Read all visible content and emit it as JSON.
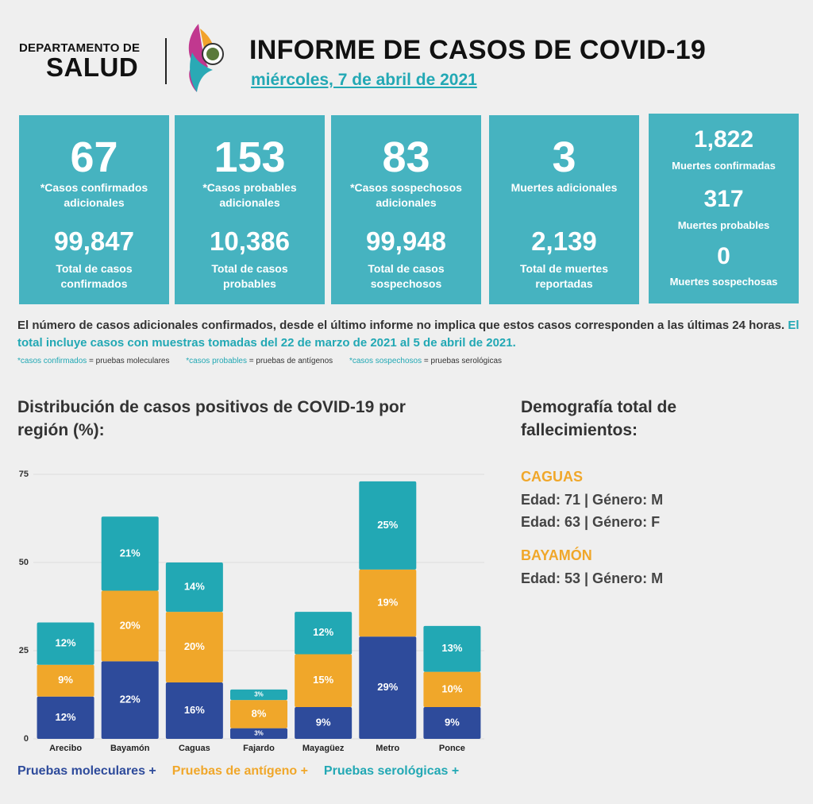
{
  "header": {
    "org_line1": "DEPARTAMENTO DE",
    "org_line2": "SALUD",
    "title": "INFORME DE CASOS DE COVID-19",
    "date": "miércoles, 7 de abril de 2021"
  },
  "cards": [
    {
      "number": "67",
      "label": "*Casos confirmados adicionales",
      "total": "99,847",
      "total_label": "Total de casos confirmados"
    },
    {
      "number": "153",
      "label": "*Casos probables adicionales",
      "total": "10,386",
      "total_label": "Total de casos probables"
    },
    {
      "number": "83",
      "label": "*Casos sospechosos adicionales",
      "total": "99,948",
      "total_label": "Total de casos sospechosos"
    },
    {
      "number": "3",
      "label": "Muertes adicionales",
      "total": "2,139",
      "total_label": "Total de muertes reportadas"
    }
  ],
  "deaths_card": [
    {
      "number": "1,822",
      "label": "Muertes confirmadas"
    },
    {
      "number": "317",
      "label": "Muertes probables"
    },
    {
      "number": "0",
      "label": "Muertes sospechosas"
    }
  ],
  "notes": {
    "text": "El número de casos adicionales confirmados, desde el último informe no implica que estos casos corresponden a las últimas 24 horas.",
    "highlight": "El total incluye casos con muestras tomadas del 22 de marzo de 2021 al 5 de abril de 2021.",
    "footnotes": [
      {
        "term": "*casos confirmados",
        "definition": "= pruebas moleculares"
      },
      {
        "term": "*casos probables",
        "definition": "= pruebas de antígenos"
      },
      {
        "term": "*casos sospechosos",
        "definition": "= pruebas serológicas"
      }
    ]
  },
  "chart_data": {
    "type": "stacked_bar",
    "title": "Distribución de casos positivos de COVID-19 por región (%):",
    "categories": [
      "Arecibo",
      "Bayamón",
      "Caguas",
      "Fajardo",
      "Mayagüez",
      "Metro",
      "Ponce"
    ],
    "series": [
      {
        "name": "Pruebas moleculares +",
        "color": "#2e4b9b",
        "values": [
          12,
          22,
          16,
          3,
          9,
          29,
          9
        ],
        "value_labels": [
          "12%",
          "22%",
          "16%",
          "3%",
          "9%",
          "29%",
          "9%"
        ]
      },
      {
        "name": "Pruebas de antígeno +",
        "color": "#f0a72a",
        "values": [
          9,
          20,
          20,
          8,
          15,
          19,
          10
        ],
        "value_labels": [
          "9%",
          "20%",
          "20%",
          "8%",
          "15%",
          "19%",
          "10%"
        ]
      },
      {
        "name": "Pruebas serológicas +",
        "color": "#22a8b4",
        "values": [
          12,
          21,
          14,
          3,
          12,
          25,
          13
        ],
        "value_labels": [
          "12%",
          "21%",
          "14%",
          "3%",
          "12%",
          "25%",
          "13%"
        ]
      }
    ],
    "ylim": [
      0,
      75
    ],
    "yticks": [
      0,
      25,
      50,
      75
    ],
    "grid": true
  },
  "demographics": {
    "title": "Demografía total de fallecimientos:",
    "groups": [
      {
        "region": "CAGUAS",
        "entries": [
          "Edad: 71 | Género: M",
          "Edad: 63 | Género: F"
        ]
      },
      {
        "region": "BAYAMÓN",
        "entries": [
          "Edad: 53 | Género: M"
        ]
      }
    ]
  }
}
